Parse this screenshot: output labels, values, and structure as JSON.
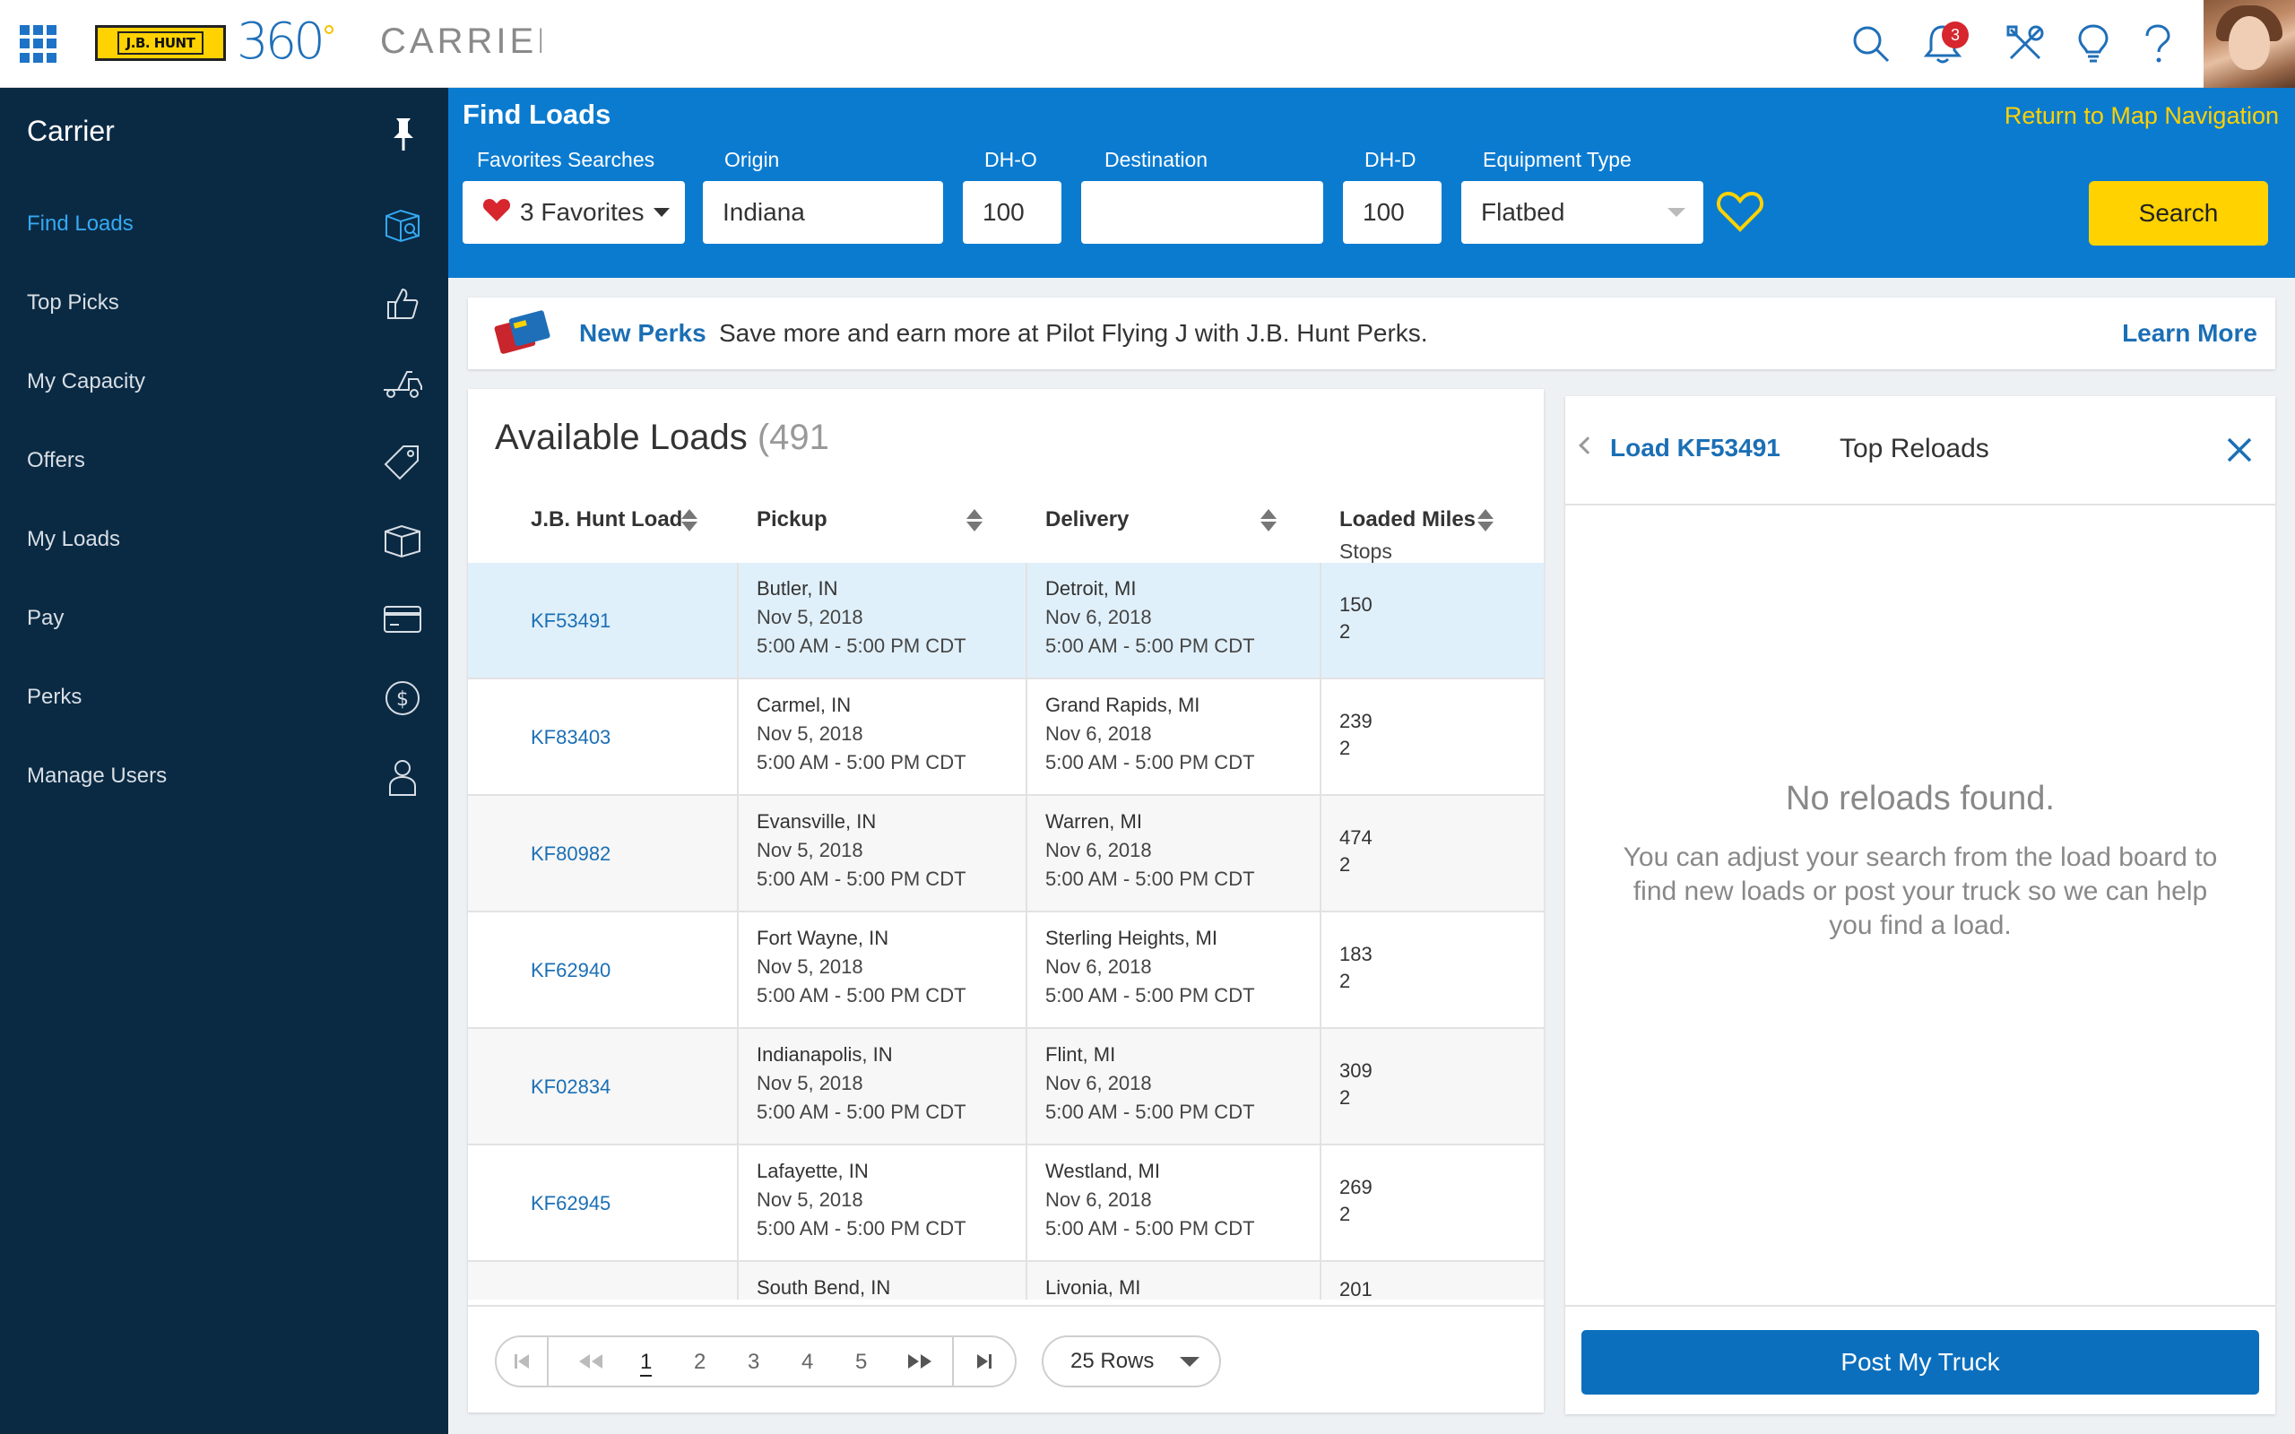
{
  "topbar": {
    "brand_badge": "J.B. HUNT",
    "brand_mark": "360",
    "app_name": "CARRIER",
    "notification_count": "3",
    "icons": [
      "grid-icon",
      "search-icon",
      "bell-icon",
      "tools-icon",
      "lightbulb-icon",
      "help-icon"
    ]
  },
  "sidebar": {
    "title": "Carrier",
    "items": [
      {
        "label": "Find Loads",
        "icon": "box-search-icon",
        "active": true
      },
      {
        "label": "Top Picks",
        "icon": "thumbs-up-icon"
      },
      {
        "label": "My Capacity",
        "icon": "truck-icon"
      },
      {
        "label": "Offers",
        "icon": "tag-icon"
      },
      {
        "label": "My Loads",
        "icon": "box-icon"
      },
      {
        "label": "Pay",
        "icon": "credit-card-icon"
      },
      {
        "label": "Perks",
        "icon": "dollar-circle-icon"
      },
      {
        "label": "Manage Users",
        "icon": "user-icon"
      }
    ]
  },
  "find": {
    "title": "Find Loads",
    "return_link": "Return to Map Navigation",
    "labels": {
      "favorites": "Favorites Searches",
      "origin": "Origin",
      "dho": "DH-O",
      "destination": "Destination",
      "dhd": "DH-D",
      "equipment": "Equipment Type"
    },
    "favorites_value": "3 Favorites",
    "origin_value": "Indiana",
    "dho_value": "100",
    "destination_value": "",
    "dhd_value": "100",
    "equipment_value": "Flatbed",
    "search_label": "Search"
  },
  "perks": {
    "title": "New Perks",
    "text": "Save more and earn more at Pilot Flying J with J.B. Hunt Perks.",
    "link": "Learn More"
  },
  "loads": {
    "title": "Available Loads",
    "count": "(491",
    "headers": {
      "load": "J.B. Hunt Load",
      "pickup": "Pickup",
      "delivery": "Delivery",
      "miles": "Loaded Miles",
      "stops": "Stops"
    },
    "rows": [
      {
        "id": "KF53491",
        "pickup_city": "Butler, IN",
        "pickup_date": "Nov 5, 2018",
        "pickup_time": "5:00 AM - 5:00 PM CDT",
        "delivery_city": "Detroit, MI",
        "delivery_date": "Nov 6, 2018",
        "delivery_time": "5:00 AM - 5:00 PM CDT",
        "miles": "150",
        "stops": "2"
      },
      {
        "id": "KF83403",
        "pickup_city": "Carmel, IN",
        "pickup_date": "Nov 5, 2018",
        "pickup_time": "5:00 AM - 5:00 PM CDT",
        "delivery_city": "Grand Rapids, MI",
        "delivery_date": "Nov 6, 2018",
        "delivery_time": "5:00 AM - 5:00 PM CDT",
        "miles": "239",
        "stops": "2"
      },
      {
        "id": "KF80982",
        "pickup_city": "Evansville, IN",
        "pickup_date": "Nov 5, 2018",
        "pickup_time": "5:00 AM - 5:00 PM CDT",
        "delivery_city": "Warren, MI",
        "delivery_date": "Nov 6, 2018",
        "delivery_time": "5:00 AM - 5:00 PM CDT",
        "miles": "474",
        "stops": "2"
      },
      {
        "id": "KF62940",
        "pickup_city": "Fort Wayne, IN",
        "pickup_date": "Nov 5, 2018",
        "pickup_time": "5:00 AM - 5:00 PM CDT",
        "delivery_city": "Sterling Heights, MI",
        "delivery_date": "Nov 6, 2018",
        "delivery_time": "5:00 AM - 5:00 PM CDT",
        "miles": "183",
        "stops": "2"
      },
      {
        "id": "KF02834",
        "pickup_city": "Indianapolis, IN",
        "pickup_date": "Nov 5, 2018",
        "pickup_time": "5:00 AM - 5:00 PM CDT",
        "delivery_city": "Flint, MI",
        "delivery_date": "Nov 6, 2018",
        "delivery_time": "5:00 AM - 5:00 PM CDT",
        "miles": "309",
        "stops": "2"
      },
      {
        "id": "KF62945",
        "pickup_city": "Lafayette, IN",
        "pickup_date": "Nov 5, 2018",
        "pickup_time": "5:00 AM - 5:00 PM CDT",
        "delivery_city": "Westland, MI",
        "delivery_date": "Nov 6, 2018",
        "delivery_time": "5:00 AM - 5:00 PM CDT",
        "miles": "269",
        "stops": "2"
      },
      {
        "id": "",
        "pickup_city": "South Bend, IN",
        "pickup_date": "",
        "pickup_time": "",
        "delivery_city": "Livonia, MI",
        "delivery_date": "",
        "delivery_time": "",
        "miles": "201",
        "stops": ""
      }
    ],
    "pager": {
      "pages": [
        "1",
        "2",
        "3",
        "4",
        "5"
      ],
      "current": "1",
      "rows_label": "25 Rows"
    }
  },
  "reloads": {
    "load_label": "Load KF53491",
    "title": "Top Reloads",
    "empty_title": "No reloads found.",
    "empty_text": "You can adjust your search from the load board to find new loads or post your truck so we can help you find a load.",
    "post_label": "Post My Truck"
  },
  "colors": {
    "brand_blue": "#0b7bd0",
    "sidebar_navy": "#0a2a44",
    "accent_yellow": "#ffd200",
    "link_blue": "#1b6fb5",
    "selected_row": "#e0f0fa"
  }
}
